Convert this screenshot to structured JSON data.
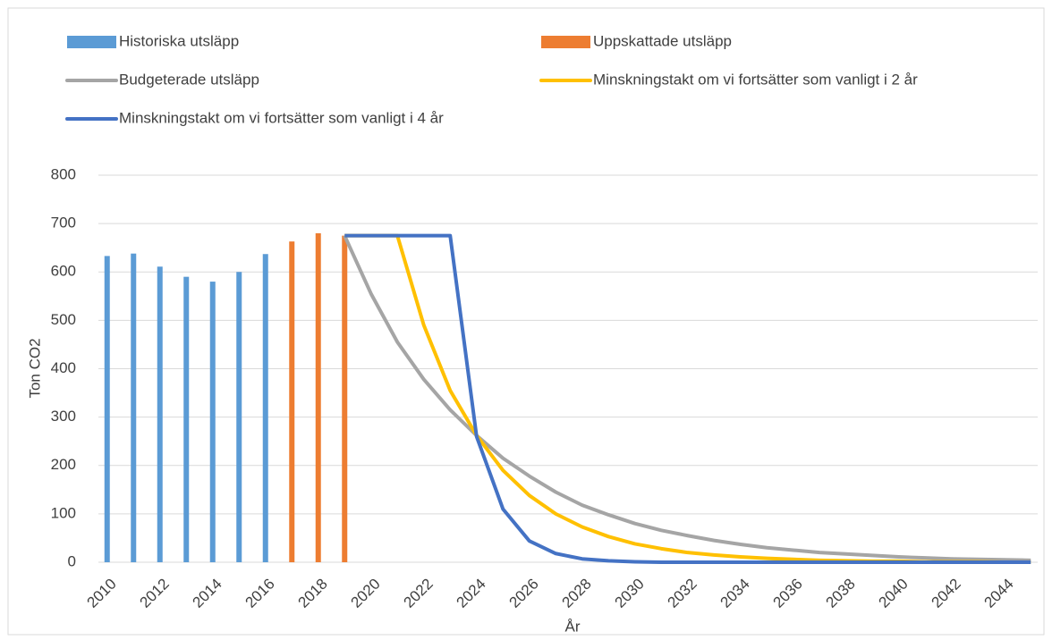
{
  "chart_data": {
    "type": "combo",
    "y_label": "Ton CO2",
    "x_label": "År",
    "categories": [
      "2010",
      null,
      "2012",
      null,
      "2014",
      null,
      "2016",
      null,
      "2018",
      null,
      "2020",
      null,
      "2022",
      null,
      "2024",
      null,
      "2026",
      null,
      "2028",
      null,
      "2030",
      null,
      "2032",
      null,
      "2034",
      null,
      "2036",
      null,
      "2038",
      null,
      "2040",
      null,
      "2042",
      null,
      "2044",
      null
    ],
    "series": [
      {
        "name": "Historiska utsläpp",
        "type": "bar",
        "color": "#5b9bd5",
        "values": [
          633,
          638,
          611,
          590,
          580,
          600,
          637,
          null,
          null,
          null,
          null,
          null,
          null,
          null,
          null,
          null,
          null,
          null,
          null,
          null,
          null,
          null,
          null,
          null,
          null,
          null,
          null,
          null,
          null,
          null,
          null,
          null,
          null,
          null,
          null,
          null
        ]
      },
      {
        "name": "Uppskattade utsläpp",
        "type": "bar",
        "color": "#ed7d31",
        "values": [
          null,
          null,
          null,
          null,
          null,
          null,
          null,
          663,
          680,
          675,
          null,
          null,
          null,
          null,
          null,
          null,
          null,
          null,
          null,
          null,
          null,
          null,
          null,
          null,
          null,
          null,
          null,
          null,
          null,
          null,
          null,
          null,
          null,
          null,
          null,
          null
        ]
      },
      {
        "name": "Budgeterade utsläpp",
        "type": "line",
        "color": "#a5a5a5",
        "values": [
          null,
          null,
          null,
          null,
          null,
          null,
          null,
          null,
          null,
          675,
          555,
          455,
          378,
          315,
          262,
          215,
          178,
          145,
          118,
          98,
          80,
          66,
          55,
          45,
          37,
          30,
          25,
          20,
          17,
          14,
          11,
          9,
          7,
          6,
          5,
          4
        ]
      },
      {
        "name": "Minskningstakt om vi fortsätter som vanligt i 2 år",
        "type": "line",
        "color": "#ffc000",
        "values": [
          null,
          null,
          null,
          null,
          null,
          null,
          null,
          null,
          null,
          675,
          675,
          675,
          490,
          355,
          262,
          190,
          138,
          100,
          73,
          53,
          38,
          28,
          20,
          15,
          11,
          8,
          6,
          4,
          3,
          2,
          2,
          1,
          1,
          1,
          0,
          0
        ]
      },
      {
        "name": "Minskningstakt om vi fortsätter som vanligt i 4 år",
        "type": "line",
        "color": "#4472c4",
        "values": [
          null,
          null,
          null,
          null,
          null,
          null,
          null,
          null,
          null,
          675,
          675,
          675,
          675,
          675,
          260,
          110,
          44,
          18,
          7,
          3,
          1,
          0,
          0,
          0,
          0,
          0,
          0,
          0,
          0,
          0,
          0,
          0,
          0,
          0,
          0,
          0
        ]
      }
    ],
    "ylim": [
      0,
      800
    ],
    "yticks": [
      0,
      100,
      200,
      300,
      400,
      500,
      600,
      700,
      800
    ],
    "grid": true
  }
}
